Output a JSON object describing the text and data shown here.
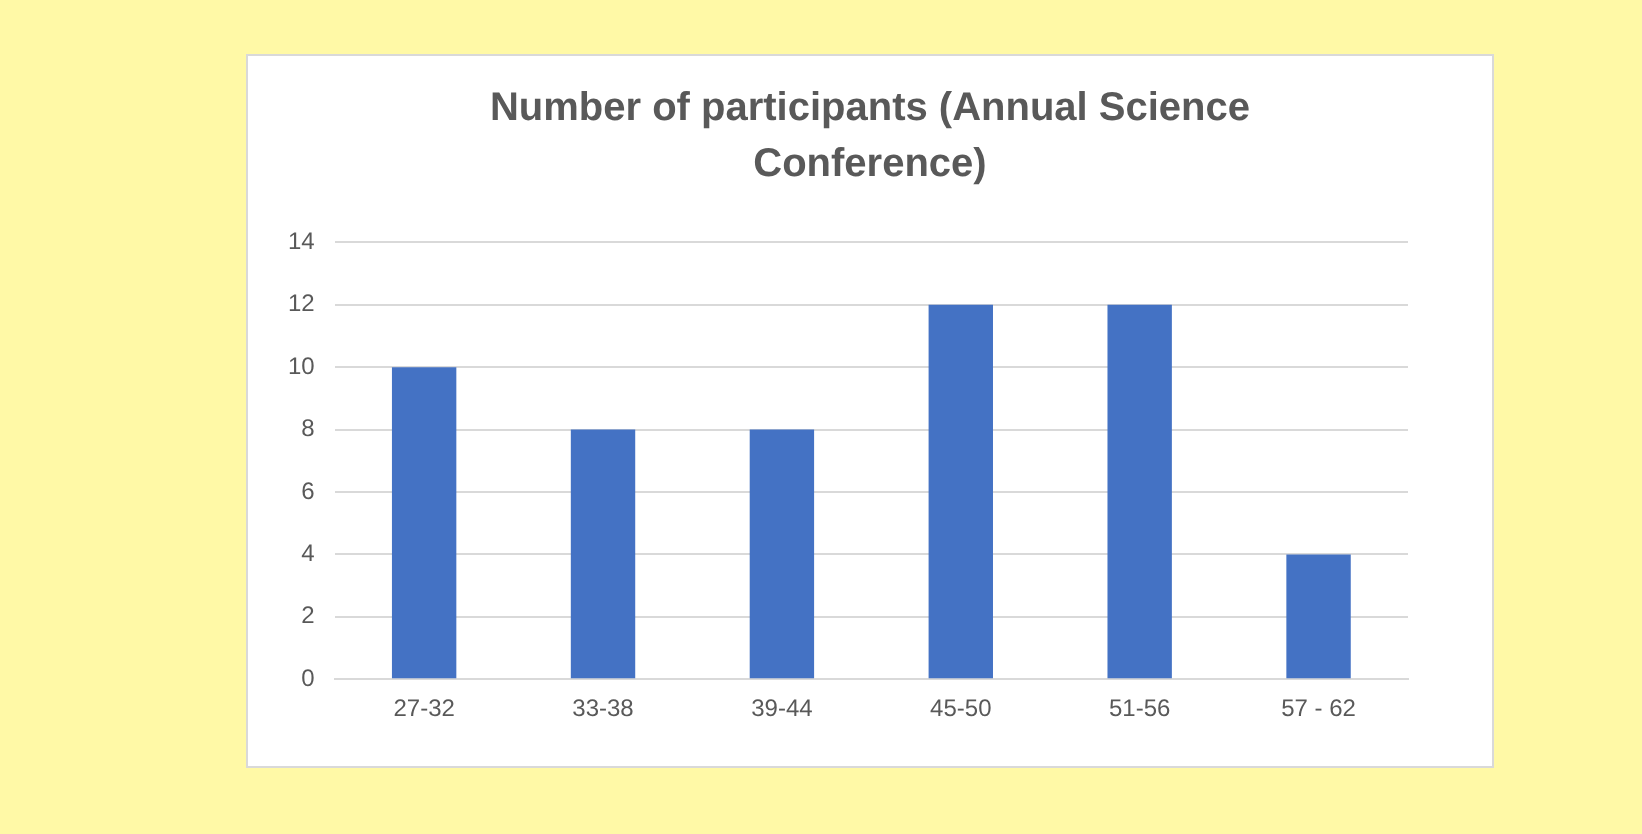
{
  "chart_data": {
    "type": "bar",
    "title": "Number of participants (Annual Science Conference)",
    "categories": [
      "27-32",
      "33-38",
      "39-44",
      "45-50",
      "51-56",
      "57 - 62"
    ],
    "values": [
      10,
      8,
      8,
      12,
      12,
      4
    ],
    "color": "#4472c4",
    "ylim": [
      0,
      14
    ],
    "yticks": [
      0,
      2,
      4,
      6,
      8,
      10,
      12,
      14
    ],
    "grid": "y",
    "legend": false
  }
}
